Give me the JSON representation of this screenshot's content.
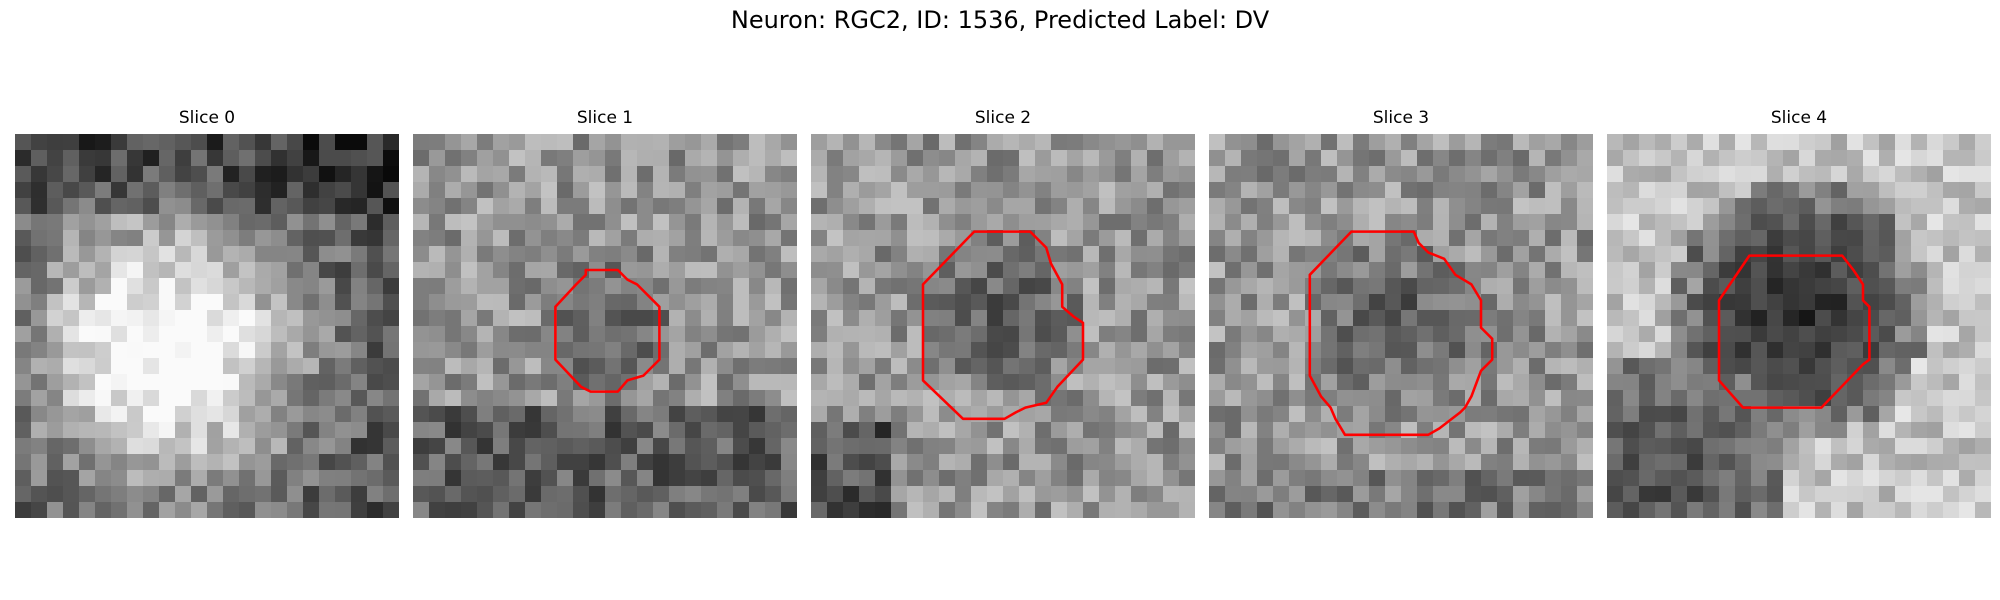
{
  "figure": {
    "title": "Neuron: RGC2, ID: 1536, Predicted Label: DV"
  },
  "image": {
    "grid_size": 24,
    "contour_color": "#ff0000",
    "panels": [
      {
        "title": "Slice 0",
        "has_contour": false,
        "contour_points": [],
        "dark_center": [
          12,
          7
        ],
        "dark_radius": 0,
        "brightness": "bright-center"
      },
      {
        "title": "Slice 1",
        "has_contour": true,
        "contour_points": [
          [
            10.8,
            8.5
          ],
          [
            12.8,
            8.5
          ],
          [
            13.4,
            9.1
          ],
          [
            14.0,
            9.4
          ],
          [
            15.4,
            10.8
          ],
          [
            15.4,
            14.1
          ],
          [
            14.4,
            15.1
          ],
          [
            13.4,
            15.4
          ],
          [
            12.8,
            16.1
          ],
          [
            11.1,
            16.1
          ],
          [
            10.5,
            15.8
          ],
          [
            8.9,
            14.1
          ],
          [
            8.9,
            10.8
          ],
          [
            10.2,
            9.4
          ],
          [
            10.8,
            8.8
          ]
        ],
        "dark_center": [
          12,
          12
        ],
        "dark_radius": 3,
        "brightness": "mixed"
      },
      {
        "title": "Slice 2",
        "has_contour": true,
        "contour_points": [
          [
            10.2,
            6.1
          ],
          [
            13.7,
            6.1
          ],
          [
            14.7,
            7.1
          ],
          [
            15.0,
            8.1
          ],
          [
            15.7,
            9.4
          ],
          [
            15.7,
            10.8
          ],
          [
            16.4,
            11.4
          ],
          [
            17.0,
            11.8
          ],
          [
            17.0,
            14.1
          ],
          [
            15.4,
            15.8
          ],
          [
            14.7,
            16.8
          ],
          [
            13.4,
            17.1
          ],
          [
            12.8,
            17.4
          ],
          [
            12.1,
            17.8
          ],
          [
            9.5,
            17.8
          ],
          [
            7.0,
            15.4
          ],
          [
            7.0,
            9.4
          ]
        ],
        "dark_center": [
          12,
          11
        ],
        "dark_radius": 4,
        "brightness": "mixed"
      },
      {
        "title": "Slice 3",
        "has_contour": true,
        "contour_points": [
          [
            8.9,
            6.1
          ],
          [
            12.8,
            6.1
          ],
          [
            13.1,
            6.8
          ],
          [
            13.7,
            7.4
          ],
          [
            14.7,
            7.8
          ],
          [
            15.4,
            8.8
          ],
          [
            16.4,
            9.4
          ],
          [
            17.0,
            10.4
          ],
          [
            17.0,
            12.1
          ],
          [
            17.7,
            12.8
          ],
          [
            17.7,
            14.1
          ],
          [
            17.0,
            14.8
          ],
          [
            16.4,
            16.4
          ],
          [
            16.0,
            17.1
          ],
          [
            15.7,
            17.4
          ],
          [
            14.4,
            18.4
          ],
          [
            13.7,
            18.8
          ],
          [
            8.5,
            18.8
          ],
          [
            7.9,
            17.8
          ],
          [
            7.6,
            17.1
          ],
          [
            7.0,
            16.4
          ],
          [
            6.3,
            15.1
          ],
          [
            6.3,
            8.8
          ]
        ],
        "dark_center": [
          12,
          12
        ],
        "dark_radius": 5,
        "brightness": "mixed"
      },
      {
        "title": "Slice 4",
        "has_contour": true,
        "contour_points": [
          [
            8.9,
            7.6
          ],
          [
            14.7,
            7.6
          ],
          [
            15.4,
            8.5
          ],
          [
            16.0,
            9.4
          ],
          [
            16.0,
            10.4
          ],
          [
            16.4,
            10.8
          ],
          [
            16.4,
            14.1
          ],
          [
            16.0,
            14.4
          ],
          [
            13.4,
            17.1
          ],
          [
            8.5,
            17.1
          ],
          [
            7.0,
            15.4
          ],
          [
            7.0,
            10.4
          ]
        ],
        "dark_center": [
          12,
          11
        ],
        "dark_radius": 5,
        "brightness": "dark-blob"
      }
    ]
  }
}
